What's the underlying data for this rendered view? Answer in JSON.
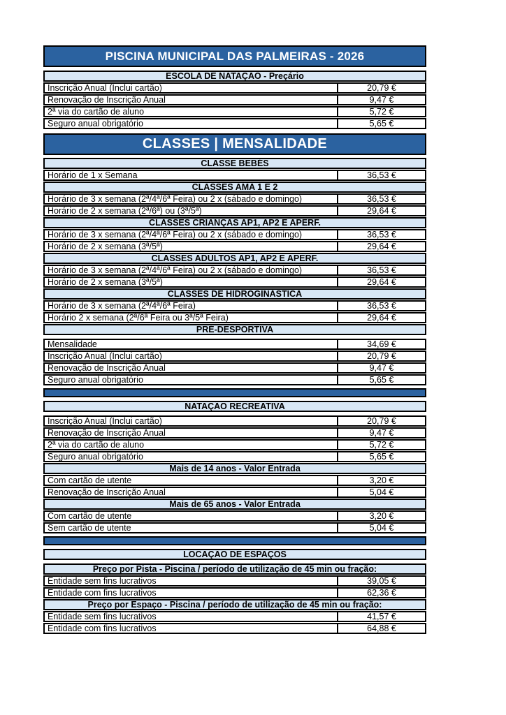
{
  "document_title": "PISCINA MUNICIPAL DAS PALMEIRAS - 2026",
  "colors": {
    "dark_blue": "#2B62A0",
    "light_blue": "#D8E7F5",
    "border": "#000000",
    "band_text": "#FFFFFF",
    "text": "#000000",
    "page_bg": "#FFFFFF"
  },
  "sections": [
    {
      "type": "title",
      "text": "PISCINA MUNICIPAL DAS PALMEIRAS - 2026"
    },
    {
      "type": "gap",
      "h": 3
    },
    {
      "type": "header",
      "text": "ESCOLA DE NATAÇÃO - Preçário"
    },
    {
      "type": "row",
      "label": "Inscrição Anual (Inclui cartão)",
      "price": "20,79 €"
    },
    {
      "type": "row",
      "label": "Renovação de Inscrição Anual",
      "price": "9,47 €"
    },
    {
      "type": "row",
      "label": "2ª via do cartão de aluno",
      "price": "5,72 €"
    },
    {
      "type": "row",
      "label": "Seguro anual obrigatório",
      "price": "5,65 €"
    },
    {
      "type": "gap",
      "h": 4
    },
    {
      "type": "title2",
      "text": "CLASSES | MENSALIDADE"
    },
    {
      "type": "gap",
      "h": 2
    },
    {
      "type": "header",
      "text": "CLASSE BEBÉS"
    },
    {
      "type": "row",
      "label": "Horário de 1 x Semana",
      "price": "36,53 €"
    },
    {
      "type": "header",
      "text": "CLASSES AMA 1 E 2"
    },
    {
      "type": "row",
      "label": "Horário de 3 x semana (2ª/4ª/6ª Feira) ou 2 x (sábado e domingo)",
      "price": "36,53 €"
    },
    {
      "type": "row",
      "label": "Horário de 2 x semana (2ª/6ª) ou (3ª/5ª)",
      "price": "29,64 €"
    },
    {
      "type": "header",
      "text": "CLASSES CRIANÇAS AP1, AP2 E APERF."
    },
    {
      "type": "row",
      "label": "Horário de 3 x semana (2ª/4ª/6ª Feira) ou 2 x (sábado e domingo)",
      "price": "36,53 €"
    },
    {
      "type": "row",
      "label": "Horário de 2 x semana (3ª/5ª)",
      "price": "29,64 €"
    },
    {
      "type": "header",
      "text": "CLASSES ADULTOS AP1, AP2 E APERF."
    },
    {
      "type": "row",
      "label": "Horário de 3 x semana (2ª/4ª/6ª Feira) ou 2 x (sábado e domingo)",
      "price": "36,53 €"
    },
    {
      "type": "row",
      "label": "Horário de 2 x semana (3ª/5ª)",
      "price": "29,64 €"
    },
    {
      "type": "header",
      "text": "CLASSES DE HIDROGINÁSTICA"
    },
    {
      "type": "row",
      "label": "Horário de 3 x semana (2ª/4ª/6ª Feira)",
      "price": "36,53 €"
    },
    {
      "type": "row",
      "label": "Horário 2 x semana (2ª/6ª Feira ou 3ª/5ª Feira)",
      "price": "29,64 €"
    },
    {
      "type": "header",
      "text": "PRÉ-DESPORTIVA"
    },
    {
      "type": "gap",
      "h": 3
    },
    {
      "type": "row",
      "label": "Mensalidade",
      "price": "34,69 €"
    },
    {
      "type": "row",
      "label": "Inscrição Anual (Inclui cartão)",
      "price": "20,79 €"
    },
    {
      "type": "row",
      "label": "Renovação de Inscrição Anual",
      "price": "9,47 €"
    },
    {
      "type": "row",
      "label": "Seguro anual obrigatório",
      "price": "5,65 €"
    },
    {
      "type": "gap",
      "h": 2
    },
    {
      "type": "separator"
    },
    {
      "type": "gap",
      "h": 3
    },
    {
      "type": "header",
      "text": "NATAÇÃO RECREATIVA"
    },
    {
      "type": "gap",
      "h": 3
    },
    {
      "type": "row",
      "label": "Inscrição Anual (Inclui cartão)",
      "price": "20,79 €"
    },
    {
      "type": "row",
      "label": "Renovação de Inscrição Anual",
      "price": "9,47 €"
    },
    {
      "type": "row",
      "label": "2ª via do cartão de aluno",
      "price": "5,72 €"
    },
    {
      "type": "row",
      "label": "Seguro anual obrigatório",
      "price": "5,65 €"
    },
    {
      "type": "header",
      "text": "Mais de 14 anos - Valor Entrada"
    },
    {
      "type": "row",
      "label": "Com cartão de utente",
      "price": "3,20 €"
    },
    {
      "type": "row",
      "label": "Renovação de Inscrição Anual",
      "price": "5,04 €"
    },
    {
      "type": "header",
      "text": "Mais de 65 anos - Valor Entrada"
    },
    {
      "type": "row",
      "label": "Com cartão de utente",
      "price": "3,20 €"
    },
    {
      "type": "row",
      "label": "Sem cartão de utente",
      "price": "5,04 €"
    },
    {
      "type": "gap",
      "h": 2
    },
    {
      "type": "separator"
    },
    {
      "type": "gap",
      "h": 3
    },
    {
      "type": "header",
      "text": "LOCAÇÃO DE ESPAÇOS"
    },
    {
      "type": "gap",
      "h": 3
    },
    {
      "type": "header",
      "text": "Preço por Pista - Piscina / período de utilização de 45 min ou fração:"
    },
    {
      "type": "row",
      "label": "Entidade sem fins lucrativos",
      "price": "39,05 €"
    },
    {
      "type": "row",
      "label": "Entidade com fins lucrativos",
      "price": "62,36 €"
    },
    {
      "type": "header",
      "text": "Preço por Espaço - Piscina / período de utilização de 45 min ou fração:"
    },
    {
      "type": "row",
      "label": "Entidade sem fins lucrativos",
      "price": "41,57 €"
    },
    {
      "type": "row",
      "label": "Entidade com fins lucrativos",
      "price": "64,88 €"
    }
  ]
}
